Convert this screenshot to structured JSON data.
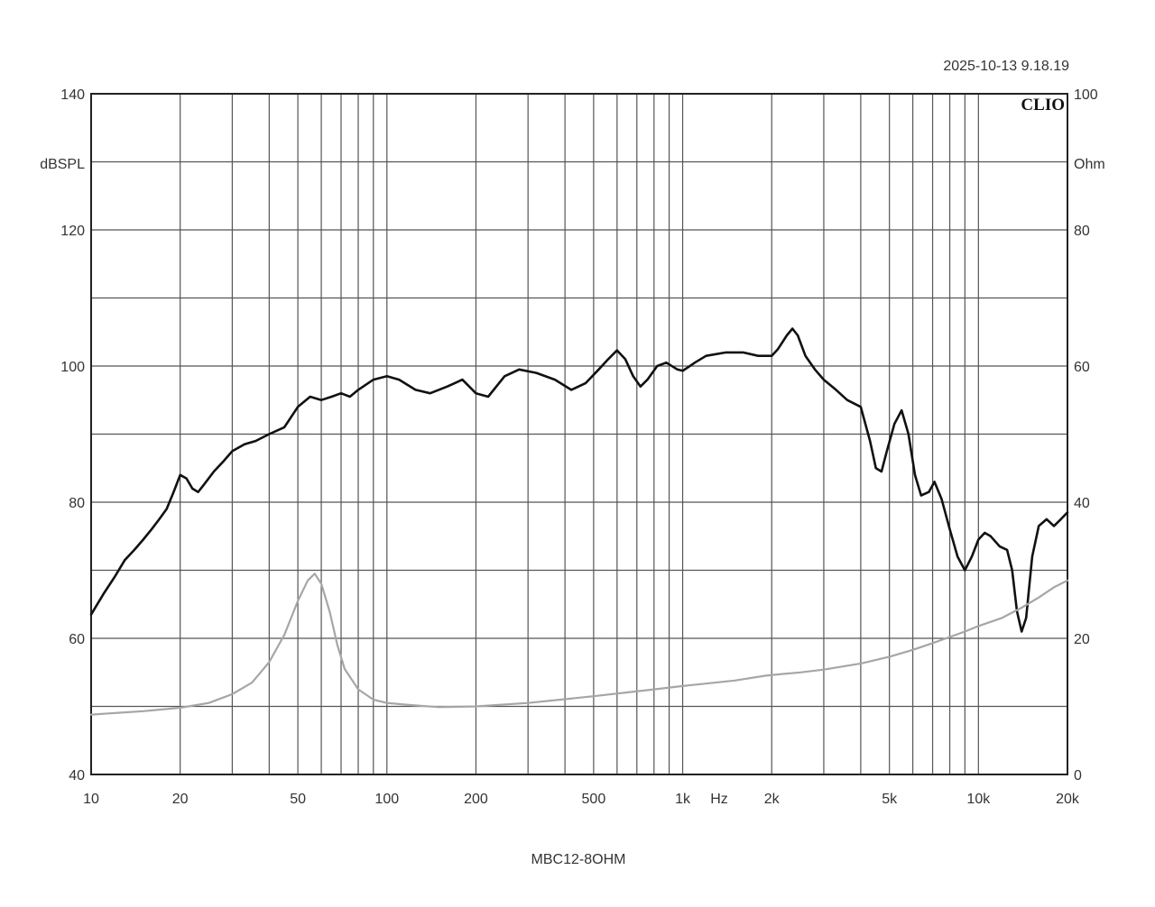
{
  "timestamp": "2025-10-13 9.18.19",
  "logo": "CLIO",
  "caption": "MBC12-8OHM",
  "chart_data": {
    "type": "line",
    "x_scale": "log",
    "xlim": [
      10,
      20000
    ],
    "ylim": [
      40,
      140
    ],
    "y2lim": [
      0,
      100
    ],
    "grid": true,
    "xlabel": "Hz",
    "ylabel": "dBSPL",
    "y2label": "Ohm",
    "x_ticks": [
      {
        "value": 10,
        "label": "10"
      },
      {
        "value": 20,
        "label": "20"
      },
      {
        "value": 50,
        "label": "50"
      },
      {
        "value": 100,
        "label": "100"
      },
      {
        "value": 200,
        "label": "200"
      },
      {
        "value": 500,
        "label": "500"
      },
      {
        "value": 1000,
        "label": "1k"
      },
      {
        "value": 2000,
        "label": "2k"
      },
      {
        "value": 5000,
        "label": "5k"
      },
      {
        "value": 10000,
        "label": "10k"
      },
      {
        "value": 20000,
        "label": "20k"
      }
    ],
    "y_ticks": [
      {
        "value": 140,
        "label": "140"
      },
      {
        "value": 120,
        "label": "120"
      },
      {
        "value": 100,
        "label": "100"
      },
      {
        "value": 80,
        "label": "80"
      },
      {
        "value": 60,
        "label": "60"
      },
      {
        "value": 40,
        "label": "40"
      }
    ],
    "y2_ticks": [
      {
        "value": 100,
        "label": "100"
      },
      {
        "value": 80,
        "label": "80"
      },
      {
        "value": 60,
        "label": "60"
      },
      {
        "value": 40,
        "label": "40"
      },
      {
        "value": 20,
        "label": "20"
      },
      {
        "value": 0,
        "label": "0"
      }
    ],
    "series": [
      {
        "axis": "left",
        "color": "#111111",
        "points": [
          [
            10,
            63.5
          ],
          [
            11,
            66.5
          ],
          [
            12,
            69
          ],
          [
            13,
            71.5
          ],
          [
            14,
            73
          ],
          [
            15,
            74.5
          ],
          [
            16,
            76
          ],
          [
            17,
            77.5
          ],
          [
            18,
            79
          ],
          [
            19,
            81.5
          ],
          [
            20,
            84
          ],
          [
            21,
            83.5
          ],
          [
            22,
            82
          ],
          [
            23,
            81.5
          ],
          [
            24,
            82.5
          ],
          [
            26,
            84.5
          ],
          [
            28,
            86
          ],
          [
            30,
            87.5
          ],
          [
            33,
            88.5
          ],
          [
            36,
            89
          ],
          [
            40,
            90
          ],
          [
            45,
            91
          ],
          [
            50,
            94
          ],
          [
            55,
            95.5
          ],
          [
            60,
            95
          ],
          [
            65,
            95.5
          ],
          [
            70,
            96
          ],
          [
            75,
            95.5
          ],
          [
            80,
            96.5
          ],
          [
            90,
            98
          ],
          [
            100,
            98.5
          ],
          [
            110,
            98
          ],
          [
            125,
            96.5
          ],
          [
            140,
            96
          ],
          [
            160,
            97
          ],
          [
            180,
            98
          ],
          [
            200,
            96
          ],
          [
            220,
            95.5
          ],
          [
            250,
            98.5
          ],
          [
            280,
            99.5
          ],
          [
            320,
            99
          ],
          [
            370,
            98
          ],
          [
            420,
            96.5
          ],
          [
            470,
            97.5
          ],
          [
            520,
            99.5
          ],
          [
            560,
            101
          ],
          [
            600,
            102.3
          ],
          [
            640,
            101
          ],
          [
            680,
            98.5
          ],
          [
            720,
            97
          ],
          [
            760,
            98
          ],
          [
            820,
            100
          ],
          [
            880,
            100.5
          ],
          [
            960,
            99.5
          ],
          [
            1000,
            99.3
          ],
          [
            1100,
            100.5
          ],
          [
            1200,
            101.5
          ],
          [
            1400,
            102
          ],
          [
            1600,
            102
          ],
          [
            1800,
            101.5
          ],
          [
            2000,
            101.5
          ],
          [
            2100,
            102.5
          ],
          [
            2250,
            104.5
          ],
          [
            2350,
            105.5
          ],
          [
            2450,
            104.5
          ],
          [
            2600,
            101.5
          ],
          [
            2800,
            99.5
          ],
          [
            3000,
            98
          ],
          [
            3300,
            96.5
          ],
          [
            3600,
            95
          ],
          [
            4000,
            94
          ],
          [
            4300,
            89
          ],
          [
            4500,
            85
          ],
          [
            4700,
            84.5
          ],
          [
            4900,
            87.5
          ],
          [
            5200,
            91.5
          ],
          [
            5500,
            93.5
          ],
          [
            5800,
            90
          ],
          [
            6100,
            84
          ],
          [
            6400,
            81
          ],
          [
            6800,
            81.5
          ],
          [
            7100,
            83
          ],
          [
            7500,
            80.5
          ],
          [
            8000,
            76
          ],
          [
            8500,
            72
          ],
          [
            9000,
            70
          ],
          [
            9500,
            72
          ],
          [
            10000,
            74.5
          ],
          [
            10500,
            75.5
          ],
          [
            11000,
            75
          ],
          [
            11800,
            73.5
          ],
          [
            12500,
            73
          ],
          [
            13000,
            70
          ],
          [
            13500,
            64
          ],
          [
            14000,
            61
          ],
          [
            14500,
            63
          ],
          [
            15200,
            72
          ],
          [
            16000,
            76.5
          ],
          [
            17000,
            77.5
          ],
          [
            18000,
            76.5
          ],
          [
            19000,
            77.5
          ],
          [
            20000,
            78.5
          ]
        ]
      },
      {
        "axis": "right",
        "color": "#a6a6a6",
        "points": [
          [
            10,
            8.8
          ],
          [
            15,
            9.3
          ],
          [
            20,
            9.8
          ],
          [
            25,
            10.5
          ],
          [
            30,
            11.8
          ],
          [
            35,
            13.5
          ],
          [
            40,
            16.5
          ],
          [
            45,
            20.5
          ],
          [
            50,
            25.5
          ],
          [
            54,
            28.5
          ],
          [
            57,
            29.5
          ],
          [
            60,
            28
          ],
          [
            64,
            24
          ],
          [
            68,
            19
          ],
          [
            72,
            15.5
          ],
          [
            80,
            12.5
          ],
          [
            90,
            11
          ],
          [
            100,
            10.5
          ],
          [
            120,
            10.2
          ],
          [
            150,
            9.9
          ],
          [
            200,
            10
          ],
          [
            300,
            10.5
          ],
          [
            500,
            11.5
          ],
          [
            800,
            12.5
          ],
          [
            1000,
            13
          ],
          [
            1500,
            13.8
          ],
          [
            1900,
            14.5
          ],
          [
            2100,
            14.7
          ],
          [
            2500,
            15
          ],
          [
            3000,
            15.4
          ],
          [
            4000,
            16.3
          ],
          [
            5000,
            17.3
          ],
          [
            6000,
            18.3
          ],
          [
            7000,
            19.3
          ],
          [
            8000,
            20.2
          ],
          [
            9000,
            21
          ],
          [
            10000,
            21.8
          ],
          [
            12000,
            23
          ],
          [
            14000,
            24.5
          ],
          [
            16000,
            26
          ],
          [
            18000,
            27.5
          ],
          [
            20000,
            28.5
          ]
        ]
      }
    ]
  }
}
